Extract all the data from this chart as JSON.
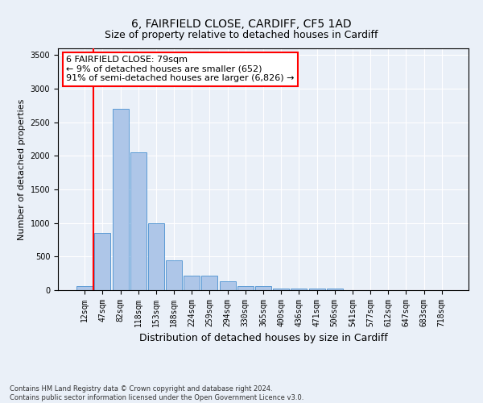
{
  "title": "6, FAIRFIELD CLOSE, CARDIFF, CF5 1AD",
  "subtitle": "Size of property relative to detached houses in Cardiff",
  "xlabel": "Distribution of detached houses by size in Cardiff",
  "ylabel": "Number of detached properties",
  "categories": [
    "12sqm",
    "47sqm",
    "82sqm",
    "118sqm",
    "153sqm",
    "188sqm",
    "224sqm",
    "259sqm",
    "294sqm",
    "330sqm",
    "365sqm",
    "400sqm",
    "436sqm",
    "471sqm",
    "506sqm",
    "541sqm",
    "577sqm",
    "612sqm",
    "647sqm",
    "683sqm",
    "718sqm"
  ],
  "values": [
    55,
    850,
    2700,
    2050,
    1000,
    450,
    220,
    215,
    130,
    65,
    55,
    30,
    30,
    30,
    20,
    5,
    5,
    5,
    0,
    0,
    0
  ],
  "bar_color": "#aec6e8",
  "bar_edge_color": "#5b9bd5",
  "vline_x_idx": 1,
  "vline_color": "red",
  "annotation_text": "6 FAIRFIELD CLOSE: 79sqm\n← 9% of detached houses are smaller (652)\n91% of semi-detached houses are larger (6,826) →",
  "annotation_box_color": "white",
  "annotation_box_edge_color": "red",
  "ylim": [
    0,
    3600
  ],
  "yticks": [
    0,
    500,
    1000,
    1500,
    2000,
    2500,
    3000,
    3500
  ],
  "background_color": "#eaf0f8",
  "footnote": "Contains HM Land Registry data © Crown copyright and database right 2024.\nContains public sector information licensed under the Open Government Licence v3.0.",
  "title_fontsize": 10,
  "subtitle_fontsize": 9,
  "ylabel_fontsize": 8,
  "xlabel_fontsize": 9,
  "tick_fontsize": 7,
  "annotation_fontsize": 8,
  "footnote_fontsize": 6
}
